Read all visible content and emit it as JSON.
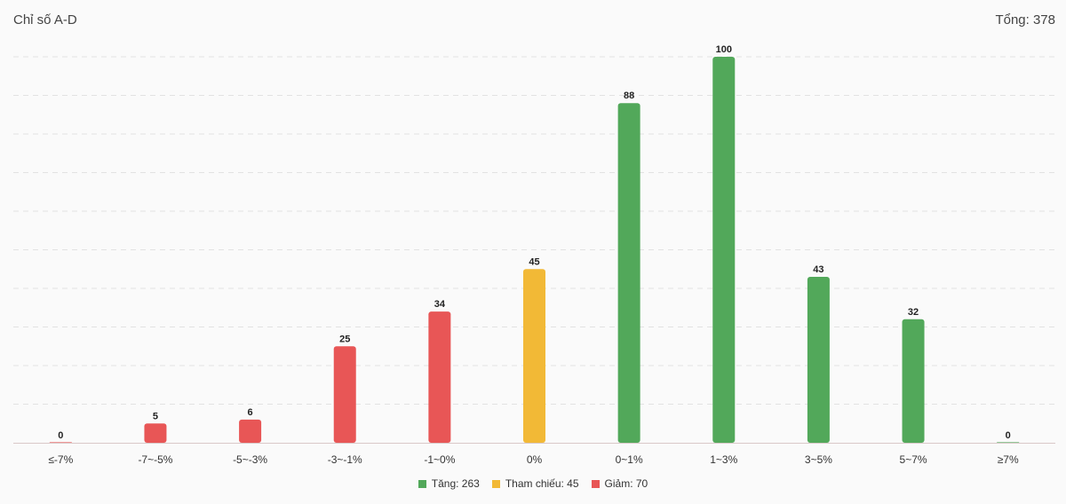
{
  "header": {
    "title": "Chỉ số A-D",
    "total": "Tổng: 378"
  },
  "colors": {
    "up": "#52a85a",
    "reference": "#f2b936",
    "down": "#e85656",
    "grid": "#e2e2e2",
    "axis": "#d9c9c9"
  },
  "legend": [
    {
      "label": "Tăng: 263",
      "color_key": "up"
    },
    {
      "label": "Tham chiếu: 45",
      "color_key": "reference"
    },
    {
      "label": "Giảm: 70",
      "color_key": "down"
    }
  ],
  "chart_data": {
    "type": "bar",
    "categories": [
      "≤-7%",
      "-7~-5%",
      "-5~-3%",
      "-3~-1%",
      "-1~0%",
      "0%",
      "0~1%",
      "1~3%",
      "3~5%",
      "5~7%",
      "≥7%"
    ],
    "values": [
      0,
      5,
      6,
      25,
      34,
      45,
      88,
      100,
      43,
      32,
      0
    ],
    "bar_groups": [
      "down",
      "down",
      "down",
      "down",
      "down",
      "reference",
      "up",
      "up",
      "up",
      "up",
      "up"
    ],
    "ylim": [
      0,
      100
    ],
    "grid": true,
    "legend_position": "bottom"
  }
}
